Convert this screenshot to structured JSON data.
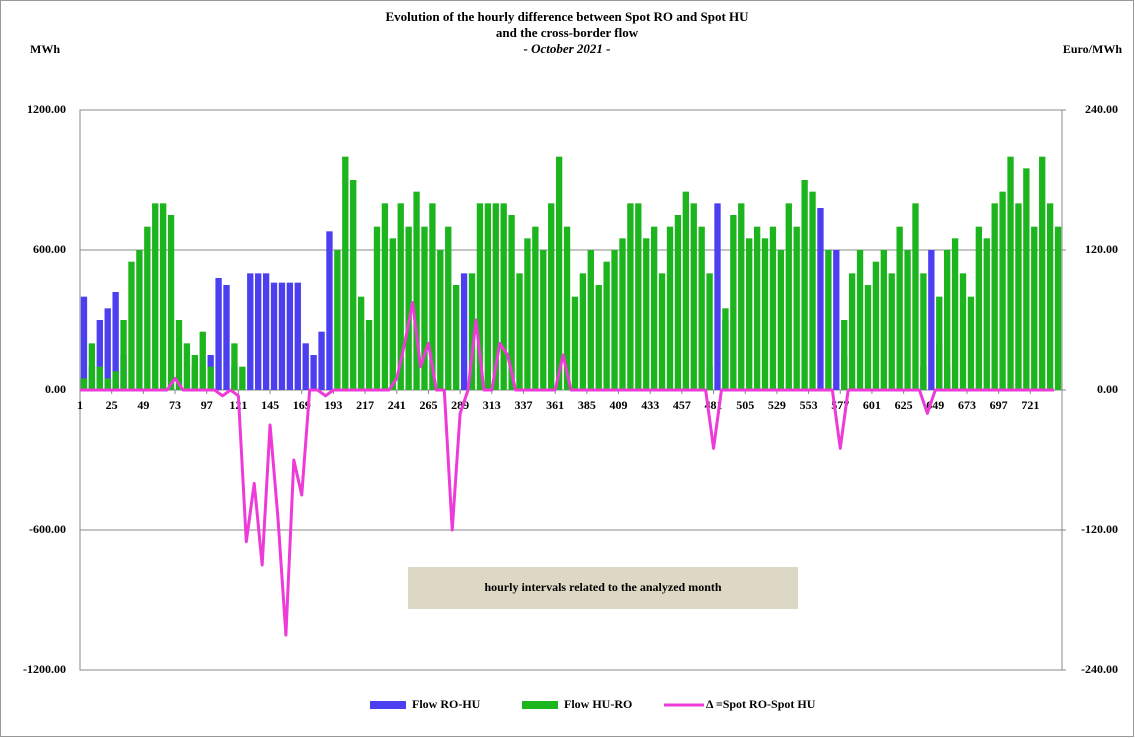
{
  "chart_data": {
    "type": "bar",
    "title": [
      "Evolution of the hourly  difference between Spot RO and Spot HU",
      "and the cross-border flow"
    ],
    "subtitle": "- October 2021 -",
    "y_label": "MWh",
    "y2_label": "Euro/MWh",
    "annotation": "hourly intervals related to the analyzed month",
    "x": [
      1,
      7,
      13,
      19,
      25,
      31,
      37,
      43,
      49,
      55,
      61,
      67,
      73,
      79,
      85,
      91,
      97,
      103,
      109,
      115,
      121,
      127,
      133,
      139,
      145,
      151,
      157,
      163,
      169,
      175,
      181,
      187,
      193,
      199,
      205,
      211,
      217,
      223,
      229,
      235,
      241,
      247,
      253,
      259,
      265,
      271,
      277,
      283,
      289,
      295,
      301,
      307,
      313,
      319,
      325,
      331,
      337,
      343,
      349,
      355,
      361,
      367,
      373,
      379,
      385,
      391,
      397,
      403,
      409,
      415,
      421,
      427,
      433,
      439,
      445,
      451,
      457,
      463,
      469,
      475,
      481,
      487,
      493,
      499,
      505,
      511,
      517,
      523,
      529,
      535,
      541,
      547,
      553,
      559,
      565,
      571,
      577,
      583,
      589,
      595,
      601,
      607,
      613,
      619,
      625,
      631,
      637,
      643,
      649,
      655,
      661,
      667,
      673,
      679,
      685,
      691,
      697,
      703,
      709,
      715,
      721,
      727,
      733,
      739
    ],
    "xlim": [
      1,
      745
    ],
    "xticks": [
      1,
      25,
      49,
      73,
      97,
      121,
      145,
      169,
      193,
      217,
      241,
      265,
      289,
      313,
      337,
      361,
      385,
      409,
      433,
      457,
      481,
      505,
      529,
      553,
      577,
      601,
      625,
      649,
      673,
      697,
      721
    ],
    "ylim": [
      -1200,
      1200
    ],
    "yticks": [
      {
        "value": -1200,
        "label": "-1200.00"
      },
      {
        "value": -600,
        "label": "-600.00"
      },
      {
        "value": 0,
        "label": "0.00"
      },
      {
        "value": 600,
        "label": "600.00"
      },
      {
        "value": 1200,
        "label": "1200.00"
      }
    ],
    "y2lim": [
      -240,
      240
    ],
    "y2ticks": [
      {
        "value": -240,
        "label": "-240.00"
      },
      {
        "value": -120,
        "label": "-120.00"
      },
      {
        "value": 0,
        "label": "0.00"
      },
      {
        "value": 120,
        "label": "120.00"
      },
      {
        "value": 240,
        "label": "240.00"
      }
    ],
    "grid": true,
    "legend": "bottom",
    "series": [
      {
        "name": "Flow RO-HU",
        "type": "bar",
        "color": "#4b3ff0",
        "values": [
          400,
          100,
          300,
          350,
          420,
          150,
          0,
          0,
          0,
          0,
          0,
          0,
          0,
          0,
          100,
          0,
          150,
          480,
          450,
          100,
          0,
          500,
          500,
          500,
          460,
          460,
          460,
          460,
          200,
          150,
          250,
          680,
          0,
          0,
          0,
          250,
          0,
          0,
          0,
          0,
          0,
          0,
          0,
          0,
          0,
          0,
          0,
          0,
          500,
          0,
          0,
          0,
          0,
          0,
          0,
          0,
          0,
          0,
          0,
          0,
          0,
          0,
          0,
          0,
          0,
          0,
          0,
          0,
          0,
          0,
          0,
          0,
          0,
          0,
          0,
          0,
          0,
          0,
          0,
          100,
          800,
          300,
          0,
          0,
          0,
          0,
          0,
          0,
          0,
          0,
          0,
          0,
          0,
          780,
          0,
          600,
          150,
          0,
          0,
          0,
          0,
          0,
          0,
          0,
          0,
          0,
          100,
          600,
          200,
          100,
          0,
          0,
          0,
          0,
          0,
          0,
          0,
          0,
          0,
          0,
          0,
          0,
          0,
          0
        ]
      },
      {
        "name": "Flow HU-RO",
        "type": "bar",
        "color": "#1db51d",
        "values": [
          50,
          200,
          100,
          50,
          80,
          300,
          550,
          600,
          700,
          800,
          800,
          750,
          300,
          200,
          150,
          250,
          100,
          0,
          0,
          200,
          100,
          0,
          0,
          0,
          0,
          0,
          0,
          0,
          0,
          0,
          0,
          0,
          600,
          1000,
          900,
          400,
          300,
          700,
          800,
          650,
          800,
          700,
          850,
          700,
          800,
          600,
          700,
          450,
          0,
          500,
          800,
          800,
          800,
          800,
          750,
          500,
          650,
          700,
          600,
          800,
          1000,
          700,
          400,
          500,
          600,
          450,
          550,
          600,
          650,
          800,
          800,
          650,
          700,
          500,
          700,
          750,
          850,
          800,
          700,
          500,
          0,
          350,
          750,
          800,
          650,
          700,
          650,
          700,
          600,
          800,
          700,
          900,
          850,
          0,
          600,
          0,
          300,
          500,
          600,
          450,
          550,
          600,
          500,
          700,
          600,
          800,
          500,
          0,
          400,
          600,
          650,
          500,
          400,
          700,
          650,
          800,
          850,
          1000,
          800,
          950,
          700,
          1000,
          800,
          700
        ]
      },
      {
        "name": "Δ =Spot  RO-Spot  HU",
        "type": "line",
        "axis": "y2",
        "color": "#ee3ad8",
        "values": [
          0,
          0,
          0,
          0,
          0,
          0,
          0,
          0,
          0,
          0,
          0,
          0,
          10,
          0,
          0,
          0,
          0,
          0,
          -5,
          0,
          -5,
          -130,
          -80,
          -150,
          -30,
          -110,
          -210,
          -60,
          -90,
          0,
          0,
          -5,
          0,
          0,
          0,
          0,
          0,
          0,
          0,
          0,
          10,
          40,
          75,
          20,
          40,
          0,
          0,
          -120,
          -20,
          0,
          60,
          0,
          0,
          40,
          30,
          0,
          0,
          0,
          0,
          0,
          0,
          30,
          0,
          0,
          0,
          0,
          0,
          0,
          0,
          0,
          0,
          0,
          0,
          0,
          0,
          0,
          0,
          0,
          0,
          0,
          -50,
          0,
          0,
          0,
          0,
          0,
          0,
          0,
          0,
          0,
          0,
          0,
          0,
          0,
          0,
          0,
          -50,
          0,
          0,
          0,
          0,
          0,
          0,
          0,
          0,
          0,
          0,
          -20,
          0,
          0,
          0,
          0,
          0,
          0,
          0,
          0,
          0,
          0,
          0,
          0,
          0,
          0,
          0,
          0
        ]
      }
    ]
  }
}
